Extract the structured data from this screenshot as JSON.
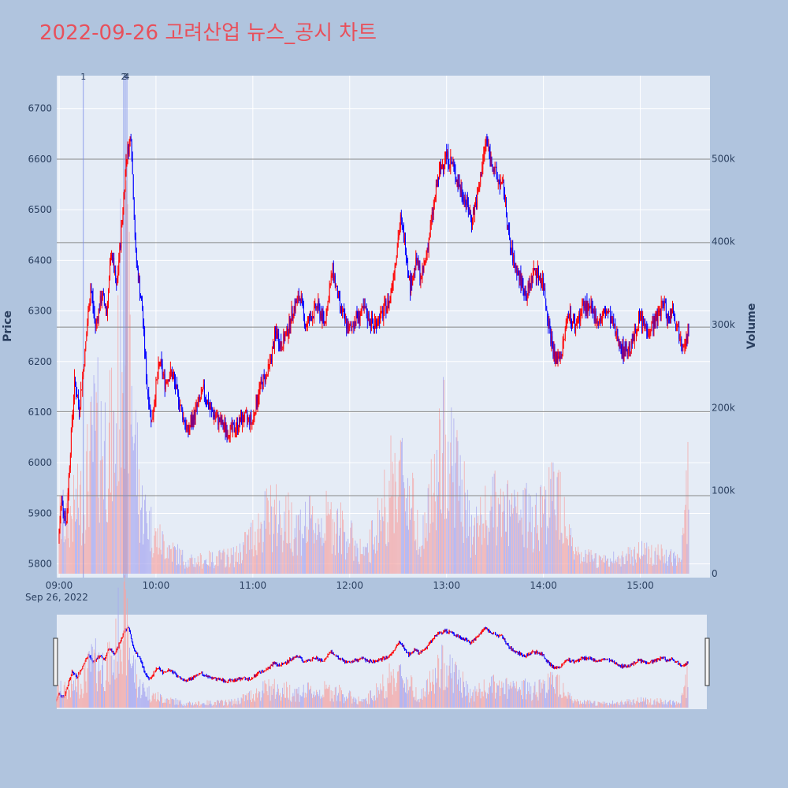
{
  "title": "2022-09-26 고려산업 뉴스_공시 차트",
  "colors": {
    "background": "#b0c4de",
    "plot_bg": "#e5ecf6",
    "title": "#e8505b",
    "up": "#ff0000",
    "down": "#0000ff",
    "up_volume": "#f4a6a6",
    "down_volume": "#a8a8f0",
    "grid": "#ffffff",
    "ref_line": "#888888"
  },
  "chart_data": {
    "type": "candlestick",
    "date": "2022-09-26",
    "x_tick_labels": [
      "09:00",
      "10:00",
      "11:00",
      "12:00",
      "13:00",
      "14:00",
      "15:00"
    ],
    "x_sub_label": "Sep 26, 2022",
    "x_range": [
      "09:00",
      "15:30"
    ],
    "y_label": "Price",
    "y_range": [
      5773,
      6765
    ],
    "y_ticks": [
      5800,
      5900,
      6000,
      6100,
      6200,
      6300,
      6400,
      6500,
      6600,
      6700
    ],
    "volume_label": "Volume",
    "volume_range": [
      0,
      600000
    ],
    "volume_ticks": [
      0,
      100000,
      200000,
      300000,
      400000,
      500000
    ],
    "volume_tick_labels": [
      "0",
      "100k",
      "200k",
      "300k",
      "400k",
      "500k"
    ],
    "reference_lines": [
      6600,
      6435,
      6268,
      6101,
      5935
    ],
    "news_markers": [
      {
        "label": "1",
        "time": "09:15"
      },
      {
        "label": "2",
        "time": "09:40"
      },
      {
        "label": "3",
        "time": "09:41"
      },
      {
        "label": "4",
        "time": "09:42"
      }
    ],
    "price_path": [
      [
        "09:00",
        5840
      ],
      [
        "09:02",
        5930
      ],
      [
        "09:05",
        5880
      ],
      [
        "09:07",
        6000
      ],
      [
        "09:10",
        6160
      ],
      [
        "09:13",
        6110
      ],
      [
        "09:16",
        6200
      ],
      [
        "09:20",
        6350
      ],
      [
        "09:23",
        6270
      ],
      [
        "09:27",
        6330
      ],
      [
        "09:30",
        6300
      ],
      [
        "09:33",
        6420
      ],
      [
        "09:36",
        6340
      ],
      [
        "09:40",
        6500
      ],
      [
        "09:42",
        6600
      ],
      [
        "09:45",
        6650
      ],
      [
        "09:48",
        6410
      ],
      [
        "09:52",
        6300
      ],
      [
        "09:55",
        6150
      ],
      [
        "09:58",
        6080
      ],
      [
        "10:00",
        6140
      ],
      [
        "10:03",
        6200
      ],
      [
        "10:06",
        6160
      ],
      [
        "10:10",
        6180
      ],
      [
        "10:15",
        6120
      ],
      [
        "10:20",
        6060
      ],
      [
        "10:25",
        6100
      ],
      [
        "10:30",
        6140
      ],
      [
        "10:35",
        6100
      ],
      [
        "10:40",
        6080
      ],
      [
        "10:45",
        6060
      ],
      [
        "10:50",
        6070
      ],
      [
        "10:55",
        6090
      ],
      [
        "11:00",
        6080
      ],
      [
        "11:05",
        6150
      ],
      [
        "11:10",
        6180
      ],
      [
        "11:15",
        6260
      ],
      [
        "11:18",
        6230
      ],
      [
        "11:22",
        6260
      ],
      [
        "11:25",
        6300
      ],
      [
        "11:30",
        6330
      ],
      [
        "11:33",
        6270
      ],
      [
        "11:37",
        6290
      ],
      [
        "11:40",
        6310
      ],
      [
        "11:45",
        6280
      ],
      [
        "11:50",
        6380
      ],
      [
        "11:55",
        6300
      ],
      [
        "12:00",
        6260
      ],
      [
        "12:05",
        6290
      ],
      [
        "12:10",
        6300
      ],
      [
        "12:15",
        6270
      ],
      [
        "12:20",
        6290
      ],
      [
        "12:25",
        6320
      ],
      [
        "12:28",
        6380
      ],
      [
        "12:32",
        6480
      ],
      [
        "12:35",
        6430
      ],
      [
        "12:38",
        6350
      ],
      [
        "12:42",
        6400
      ],
      [
        "12:45",
        6360
      ],
      [
        "12:50",
        6450
      ],
      [
        "12:55",
        6560
      ],
      [
        "13:00",
        6610
      ],
      [
        "13:04",
        6590
      ],
      [
        "13:08",
        6550
      ],
      [
        "13:12",
        6520
      ],
      [
        "13:16",
        6480
      ],
      [
        "13:20",
        6530
      ],
      [
        "13:25",
        6640
      ],
      [
        "13:28",
        6600
      ],
      [
        "13:32",
        6560
      ],
      [
        "13:36",
        6540
      ],
      [
        "13:40",
        6420
      ],
      [
        "13:45",
        6370
      ],
      [
        "13:50",
        6330
      ],
      [
        "13:55",
        6380
      ],
      [
        "14:00",
        6360
      ],
      [
        "14:05",
        6250
      ],
      [
        "14:08",
        6200
      ],
      [
        "14:12",
        6220
      ],
      [
        "14:16",
        6300
      ],
      [
        "14:20",
        6270
      ],
      [
        "14:25",
        6310
      ],
      [
        "14:30",
        6300
      ],
      [
        "14:35",
        6280
      ],
      [
        "14:40",
        6300
      ],
      [
        "14:45",
        6260
      ],
      [
        "14:50",
        6220
      ],
      [
        "14:55",
        6230
      ],
      [
        "15:00",
        6290
      ],
      [
        "15:05",
        6260
      ],
      [
        "15:10",
        6280
      ],
      [
        "15:15",
        6320
      ],
      [
        "15:18",
        6280
      ],
      [
        "15:20",
        6310
      ],
      [
        "15:24",
        6260
      ],
      [
        "15:27",
        6240
      ],
      [
        "15:30",
        6250
      ]
    ],
    "volume_peaks": [
      [
        "09:05",
        90000
      ],
      [
        "09:15",
        130000
      ],
      [
        "09:22",
        230000
      ],
      [
        "09:35",
        220000
      ],
      [
        "09:40",
        520000
      ],
      [
        "09:45",
        310000
      ],
      [
        "09:50",
        120000
      ],
      [
        "10:00",
        60000
      ],
      [
        "10:20",
        20000
      ],
      [
        "10:50",
        30000
      ],
      [
        "11:10",
        100000
      ],
      [
        "11:30",
        80000
      ],
      [
        "11:50",
        90000
      ],
      [
        "12:10",
        30000
      ],
      [
        "12:30",
        180000
      ],
      [
        "12:35",
        150000
      ],
      [
        "12:45",
        60000
      ],
      [
        "13:00",
        230000
      ],
      [
        "13:05",
        190000
      ],
      [
        "13:15",
        70000
      ],
      [
        "13:30",
        110000
      ],
      [
        "13:45",
        95000
      ],
      [
        "13:55",
        100000
      ],
      [
        "14:10",
        140000
      ],
      [
        "14:20",
        30000
      ],
      [
        "14:40",
        20000
      ],
      [
        "15:00",
        40000
      ],
      [
        "15:15",
        30000
      ],
      [
        "15:25",
        20000
      ],
      [
        "15:30",
        170000
      ]
    ]
  }
}
